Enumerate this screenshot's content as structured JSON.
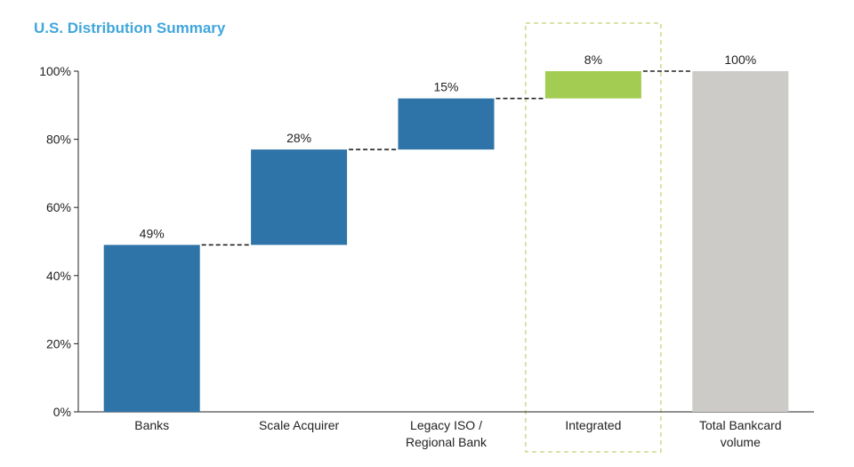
{
  "chart_data": {
    "type": "waterfall",
    "title": "U.S. Distribution Summary",
    "xlabel": "",
    "ylabel": "",
    "ylim": [
      0,
      100
    ],
    "yticks": [
      "0%",
      "20%",
      "40%",
      "60%",
      "80%",
      "100%"
    ],
    "ytick_values": [
      0,
      20,
      40,
      60,
      80,
      100
    ],
    "categories": [
      [
        "Banks"
      ],
      [
        "Scale Acquirer"
      ],
      [
        "Legacy ISO /",
        "Regional Bank"
      ],
      [
        "Integrated"
      ],
      [
        "Total Bankcard",
        "volume"
      ]
    ],
    "values": [
      49,
      28,
      15,
      8,
      100
    ],
    "data_labels": [
      "49%",
      "28%",
      "15%",
      "8%",
      "100%"
    ],
    "bar_kinds": [
      "step",
      "step",
      "step",
      "step",
      "total"
    ],
    "highlighted_category": "Integrated",
    "colors": {
      "step": "#2e74a8",
      "highlight": "#a3cc52",
      "total": "#cdcbc8",
      "highlight_box": "#c8dc8c",
      "title": "#41a6dc"
    }
  }
}
